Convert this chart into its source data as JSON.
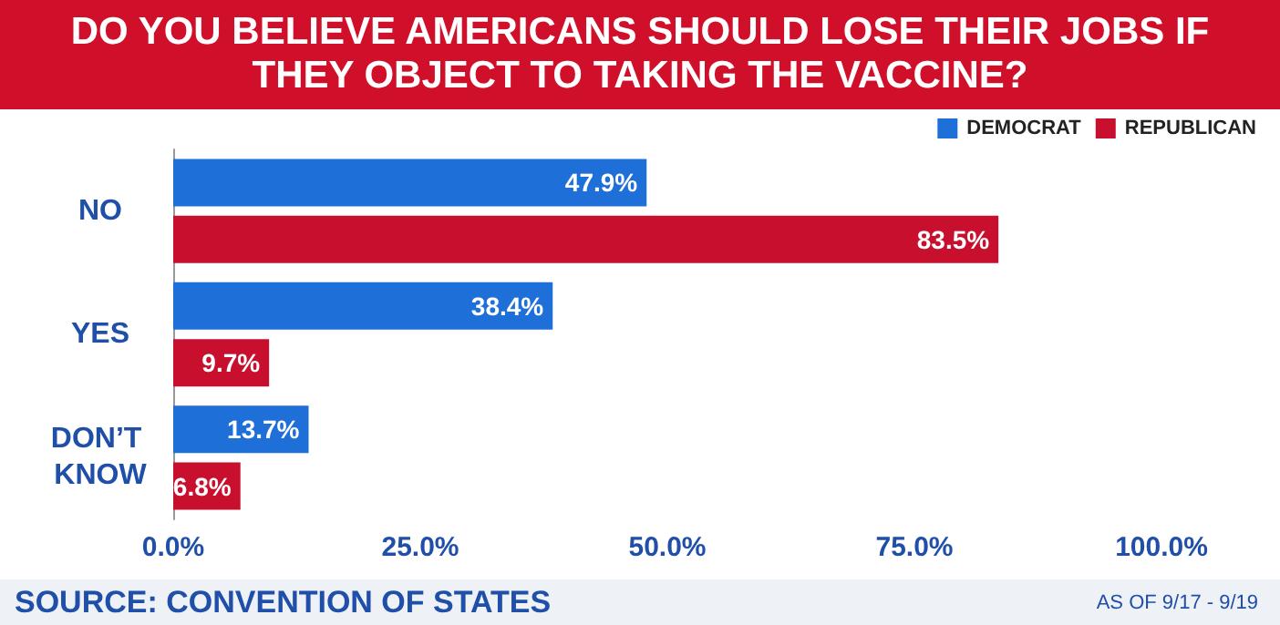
{
  "chart_data": {
    "type": "bar",
    "orientation": "horizontal",
    "title": "DO YOU BELIEVE AMERICANS SHOULD LOSE THEIR JOBS IF THEY OBJECT TO TAKING THE VACCINE?",
    "categories": [
      "NO",
      "YES",
      "DON’T KNOW"
    ],
    "series": [
      {
        "name": "DEMOCRAT",
        "color": "#1f6fd8",
        "values": [
          47.9,
          38.4,
          13.7
        ],
        "value_labels": [
          "47.9%",
          "38.4%",
          "13.7%"
        ]
      },
      {
        "name": "REPUBLICAN",
        "color": "#c8102e",
        "values": [
          83.5,
          9.7,
          6.8
        ],
        "value_labels": [
          "83.5%",
          "9.7%",
          "6.8%"
        ]
      }
    ],
    "xlim": [
      0,
      100
    ],
    "xticks": [
      {
        "value": 0,
        "label": "0.0%"
      },
      {
        "value": 25,
        "label": "25.0%"
      },
      {
        "value": 50,
        "label": "50.0%"
      },
      {
        "value": 75,
        "label": "75.0%"
      },
      {
        "value": 100,
        "label": "100.0%"
      }
    ],
    "grid": false,
    "legend": "top right",
    "annotations": [
      "SOURCE: CONVENTION OF STATES",
      "AS OF 9/17 - 9/19"
    ]
  }
}
